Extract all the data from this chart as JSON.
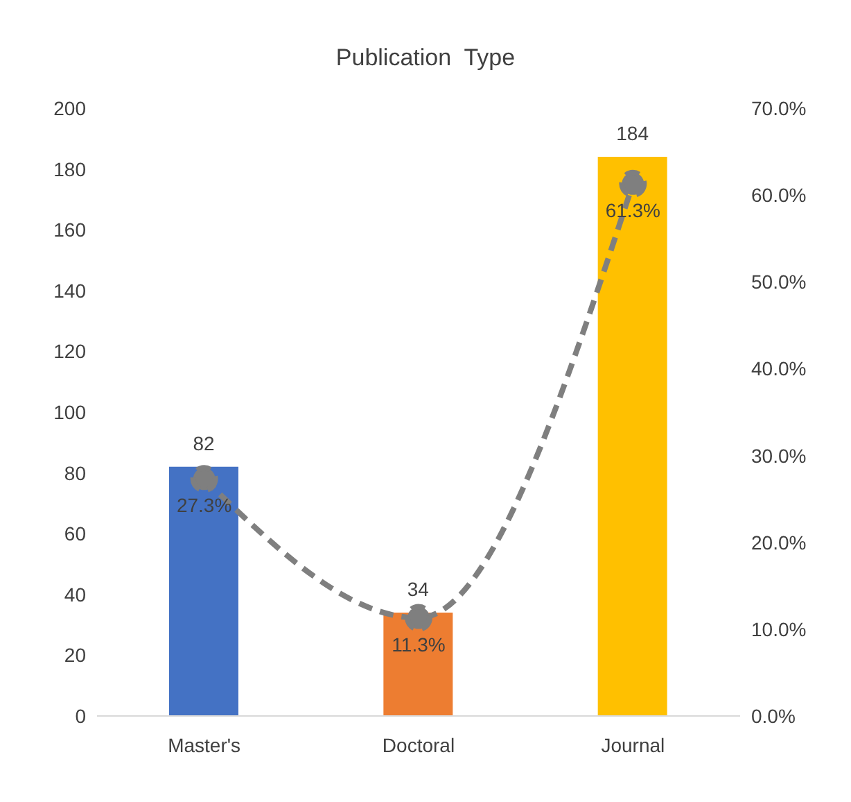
{
  "chart_data": {
    "type": "bar",
    "title": "Publication  Type",
    "categories": [
      "Master's",
      "Doctoral",
      "Journal"
    ],
    "series": [
      {
        "colors": [
          "#4472c4",
          "#ed7d31",
          "#ffc000"
        ],
        "values": [
          82,
          34,
          184
        ],
        "value_labels": [
          "82",
          "34",
          "184"
        ]
      },
      {
        "type": "line",
        "axis": "y2",
        "color": "#7f7f7f",
        "values": [
          27.3,
          11.3,
          61.3
        ],
        "value_labels": [
          "27.3%",
          "11.3%",
          "61.3%"
        ],
        "line_style": "dashed",
        "marker": "circle"
      }
    ],
    "ylim": [
      0,
      200
    ],
    "yticks": [
      0,
      20,
      40,
      60,
      80,
      100,
      120,
      140,
      160,
      180,
      200
    ],
    "y2lim": [
      0,
      70
    ],
    "y2ticks": [
      {
        "value": 0,
        "label": "0.0%"
      },
      {
        "value": 10,
        "label": "10.0%"
      },
      {
        "value": 20,
        "label": "20.0%"
      },
      {
        "value": 30,
        "label": "30.0%"
      },
      {
        "value": 40,
        "label": "40.0%"
      },
      {
        "value": 50,
        "label": "50.0%"
      },
      {
        "value": 60,
        "label": "60.0%"
      },
      {
        "value": 70,
        "label": "70.0%"
      }
    ]
  }
}
